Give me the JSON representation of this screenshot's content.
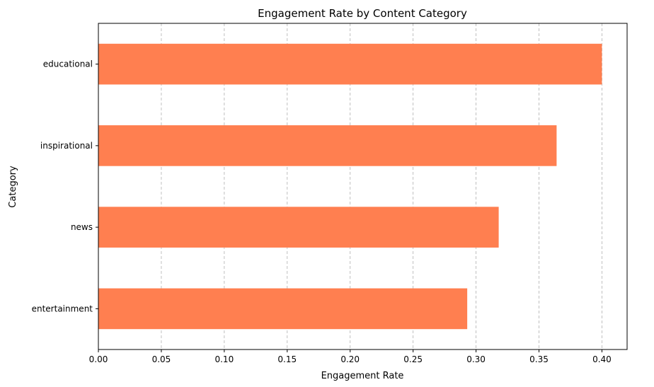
{
  "chart_data": {
    "type": "bar",
    "orientation": "horizontal",
    "title": "Engagement Rate by Content Category",
    "xlabel": "Engagement Rate",
    "ylabel": "Category",
    "categories": [
      "entertainment",
      "news",
      "inspirational",
      "educational"
    ],
    "values": [
      0.293,
      0.318,
      0.364,
      0.4
    ],
    "xlim": [
      0.0,
      0.42
    ],
    "xticks": [
      "0.00",
      "0.05",
      "0.10",
      "0.15",
      "0.20",
      "0.25",
      "0.30",
      "0.35",
      "0.40"
    ],
    "grid": "x-dashed",
    "bar_color": "#ff7f50",
    "legend": "none"
  }
}
